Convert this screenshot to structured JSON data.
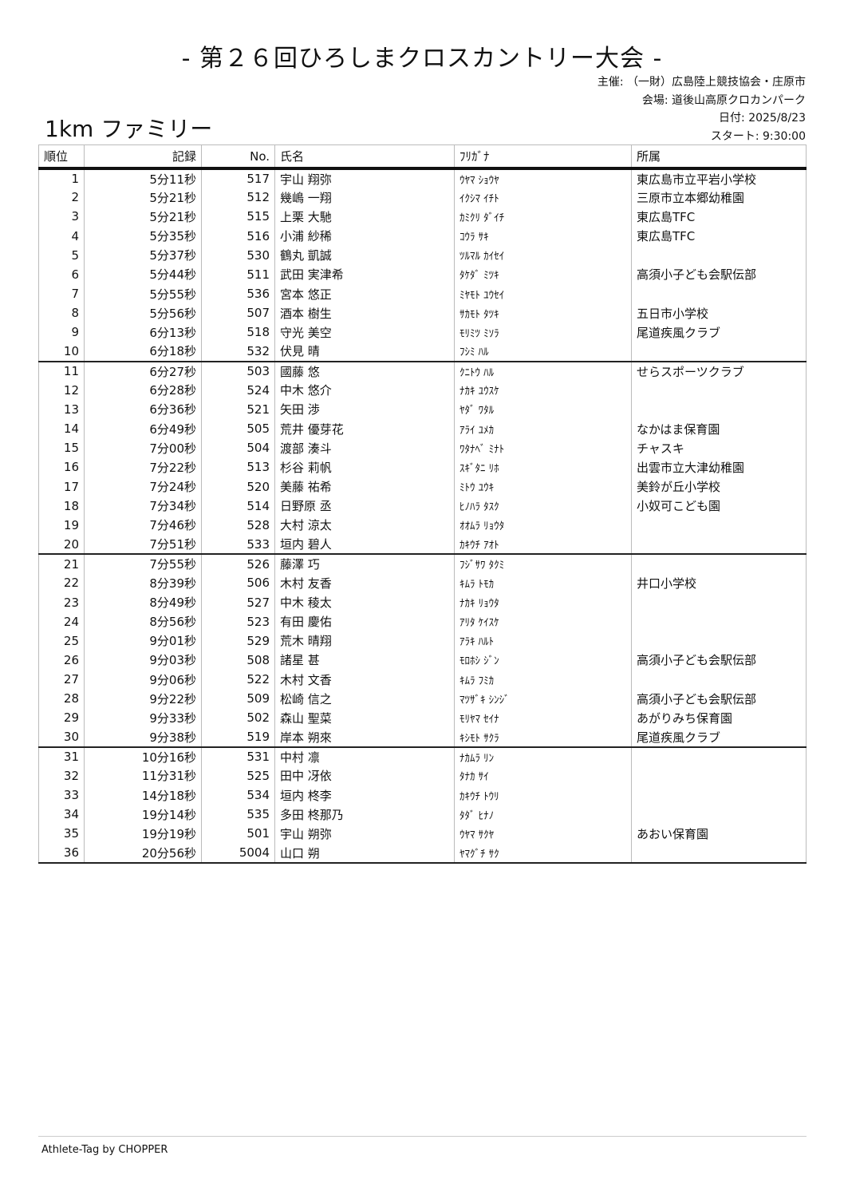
{
  "title": "- 第２６回ひろしまクロスカントリー大会 -",
  "meta": {
    "organizer": "主催: （一財）広島陸上競技協会・庄原市",
    "venue": "会場: 道後山高原クロカンパーク",
    "date": "日付: 2025/8/23",
    "start": "スタート: 9:30:00"
  },
  "event": "1km ファミリー",
  "columns": [
    "順位",
    "記録",
    "No.",
    "氏名",
    "ﾌﾘｶﾞﾅ",
    "所属"
  ],
  "rows": [
    [
      "1",
      "5分11秒",
      "517",
      "宇山 翔弥",
      "ｳﾔﾏ ｼｮｳﾔ",
      "東広島市立平岩小学校"
    ],
    [
      "2",
      "5分21秒",
      "512",
      "幾嶋 一翔",
      "ｲｸｼﾏ ｲﾁﾄ",
      "三原市立本郷幼稚園"
    ],
    [
      "3",
      "5分21秒",
      "515",
      "上栗 大馳",
      "ｶﾐｸﾘ ﾀﾞｲﾁ",
      "東広島TFC"
    ],
    [
      "4",
      "5分35秒",
      "516",
      "小浦 紗稀",
      "ｺｳﾗ ｻｷ",
      "東広島TFC"
    ],
    [
      "5",
      "5分37秒",
      "530",
      "鶴丸 凱誠",
      "ﾂﾙﾏﾙ ｶｲｾｲ",
      ""
    ],
    [
      "6",
      "5分44秒",
      "511",
      "武田 実津希",
      "ﾀｹﾀﾞ ﾐﾂｷ",
      "高須小子ども会駅伝部"
    ],
    [
      "7",
      "5分55秒",
      "536",
      "宮本 悠正",
      "ﾐﾔﾓﾄ ﾕｳｾｲ",
      ""
    ],
    [
      "8",
      "5分56秒",
      "507",
      "酒本 樹生",
      "ｻｶﾓﾄ ﾀﾂｷ",
      "五日市小学校"
    ],
    [
      "9",
      "6分13秒",
      "518",
      "守光 美空",
      "ﾓﾘﾐﾂ ﾐｿﾗ",
      "尾道疾風クラブ"
    ],
    [
      "10",
      "6分18秒",
      "532",
      "伏見 晴",
      "ﾌｼﾐ ﾊﾙ",
      ""
    ],
    [
      "11",
      "6分27秒",
      "503",
      "國藤 悠",
      "ｸﾆﾄｳ ﾊﾙ",
      "せらスポーツクラブ"
    ],
    [
      "12",
      "6分28秒",
      "524",
      "中木 悠介",
      "ﾅｶｷ ﾕｳｽｹ",
      ""
    ],
    [
      "13",
      "6分36秒",
      "521",
      "矢田 渉",
      "ﾔﾀﾞ ﾜﾀﾙ",
      ""
    ],
    [
      "14",
      "6分49秒",
      "505",
      "荒井 優芽花",
      "ｱﾗｲ ﾕﾒｶ",
      "なかはま保育園"
    ],
    [
      "15",
      "7分00秒",
      "504",
      "渡部 湊斗",
      "ﾜﾀﾅﾍﾞ ﾐﾅﾄ",
      "チャスキ"
    ],
    [
      "16",
      "7分22秒",
      "513",
      "杉谷 莉帆",
      "ｽｷﾞﾀﾆ ﾘﾎ",
      "出雲市立大津幼稚園"
    ],
    [
      "17",
      "7分24秒",
      "520",
      "美藤 祐希",
      "ﾐﾄｳ ﾕｳｷ",
      "美鈴が丘小学校"
    ],
    [
      "18",
      "7分34秒",
      "514",
      "日野原 丞",
      "ﾋﾉﾊﾗ ﾀｽｸ",
      "小奴可こども園"
    ],
    [
      "19",
      "7分46秒",
      "528",
      "大村 涼太",
      "ｵｵﾑﾗ ﾘｮｳﾀ",
      ""
    ],
    [
      "20",
      "7分51秒",
      "533",
      "垣内 碧人",
      "ｶｷｳﾁ ｱｵﾄ",
      ""
    ],
    [
      "21",
      "7分55秒",
      "526",
      "藤澤 巧",
      "ﾌｼﾞｻﾜ ﾀｸﾐ",
      ""
    ],
    [
      "22",
      "8分39秒",
      "506",
      "木村 友香",
      "ｷﾑﾗ ﾄﾓｶ",
      "井口小学校"
    ],
    [
      "23",
      "8分49秒",
      "527",
      "中木 稜太",
      "ﾅｶｷ ﾘｮｳﾀ",
      ""
    ],
    [
      "24",
      "8分56秒",
      "523",
      "有田 慶佑",
      "ｱﾘﾀ ｹｲｽｹ",
      ""
    ],
    [
      "25",
      "9分01秒",
      "529",
      "荒木 晴翔",
      "ｱﾗｷ ﾊﾙﾄ",
      ""
    ],
    [
      "26",
      "9分03秒",
      "508",
      "諸星 甚",
      "ﾓﾛﾎｼ ｼﾞﾝ",
      "高須小子ども会駅伝部"
    ],
    [
      "27",
      "9分06秒",
      "522",
      "木村 文香",
      "ｷﾑﾗ ﾌﾐｶ",
      ""
    ],
    [
      "28",
      "9分22秒",
      "509",
      "松崎 信之",
      "ﾏﾂｻﾞｷ ｼﾝｼﾞ",
      "高須小子ども会駅伝部"
    ],
    [
      "29",
      "9分33秒",
      "502",
      "森山 聖菜",
      "ﾓﾘﾔﾏ ｾｲﾅ",
      "あがりみち保育園"
    ],
    [
      "30",
      "9分38秒",
      "519",
      "岸本 朔來",
      "ｷｼﾓﾄ ｻｸﾗ",
      "尾道疾風クラブ"
    ],
    [
      "31",
      "10分16秒",
      "531",
      "中村 凛",
      "ﾅｶﾑﾗ ﾘﾝ",
      ""
    ],
    [
      "32",
      "11分31秒",
      "525",
      "田中 冴依",
      "ﾀﾅｶ ｻｲ",
      ""
    ],
    [
      "33",
      "14分18秒",
      "534",
      "垣内 柊李",
      "ｶｷｳﾁ ﾄｳﾘ",
      ""
    ],
    [
      "34",
      "19分14秒",
      "535",
      "多田 柊那乃",
      "ﾀﾀﾞ ﾋﾅﾉ",
      ""
    ],
    [
      "35",
      "19分19秒",
      "501",
      "宇山 朔弥",
      "ｳﾔﾏ ｻｸﾔ",
      "あおい保育園"
    ],
    [
      "36",
      "20分56秒",
      "5004",
      "山口 朔",
      "ﾔﾏｸﾞﾁ ｻｸ",
      ""
    ]
  ],
  "footer": "Athlete-Tag by CHOPPER"
}
